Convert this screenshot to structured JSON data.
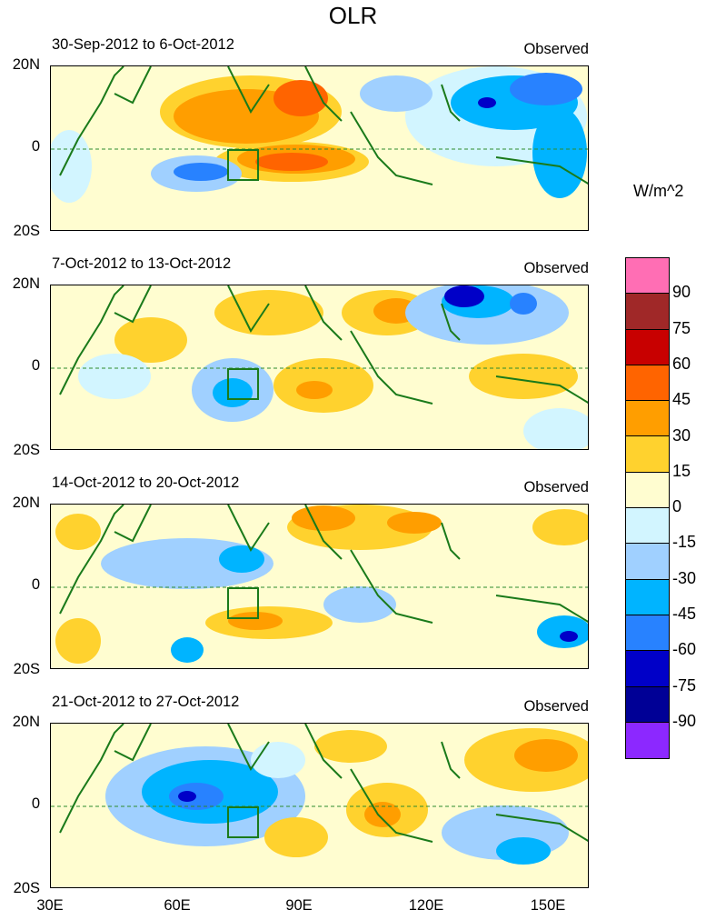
{
  "title": "OLR",
  "unit": "W/m^2",
  "panels": [
    {
      "dates": "30-Sep-2012 to 6-Oct-2012",
      "label": "Observed"
    },
    {
      "dates": "7-Oct-2012 to 13-Oct-2012",
      "label": "Observed"
    },
    {
      "dates": "14-Oct-2012 to 20-Oct-2012",
      "label": "Observed"
    },
    {
      "dates": "21-Oct-2012 to 27-Oct-2012",
      "label": "Observed"
    }
  ],
  "lat_labels": [
    "20N",
    "0",
    "20S"
  ],
  "lon_labels": [
    "30E",
    "60E",
    "90E",
    "120E",
    "150E"
  ],
  "colorbar": {
    "colors": [
      "#ff6eb4",
      "#a02828",
      "#c80000",
      "#ff6400",
      "#ff9e00",
      "#ffd22e",
      "#fffdd0",
      "#d2f5ff",
      "#a0d0ff",
      "#00b4ff",
      "#2882ff",
      "#0000c8",
      "#000096",
      "#8c28ff"
    ],
    "labels": [
      "90",
      "75",
      "60",
      "45",
      "30",
      "15",
      "0",
      "-15",
      "-30",
      "-45",
      "-60",
      "-75",
      "-90"
    ]
  }
}
